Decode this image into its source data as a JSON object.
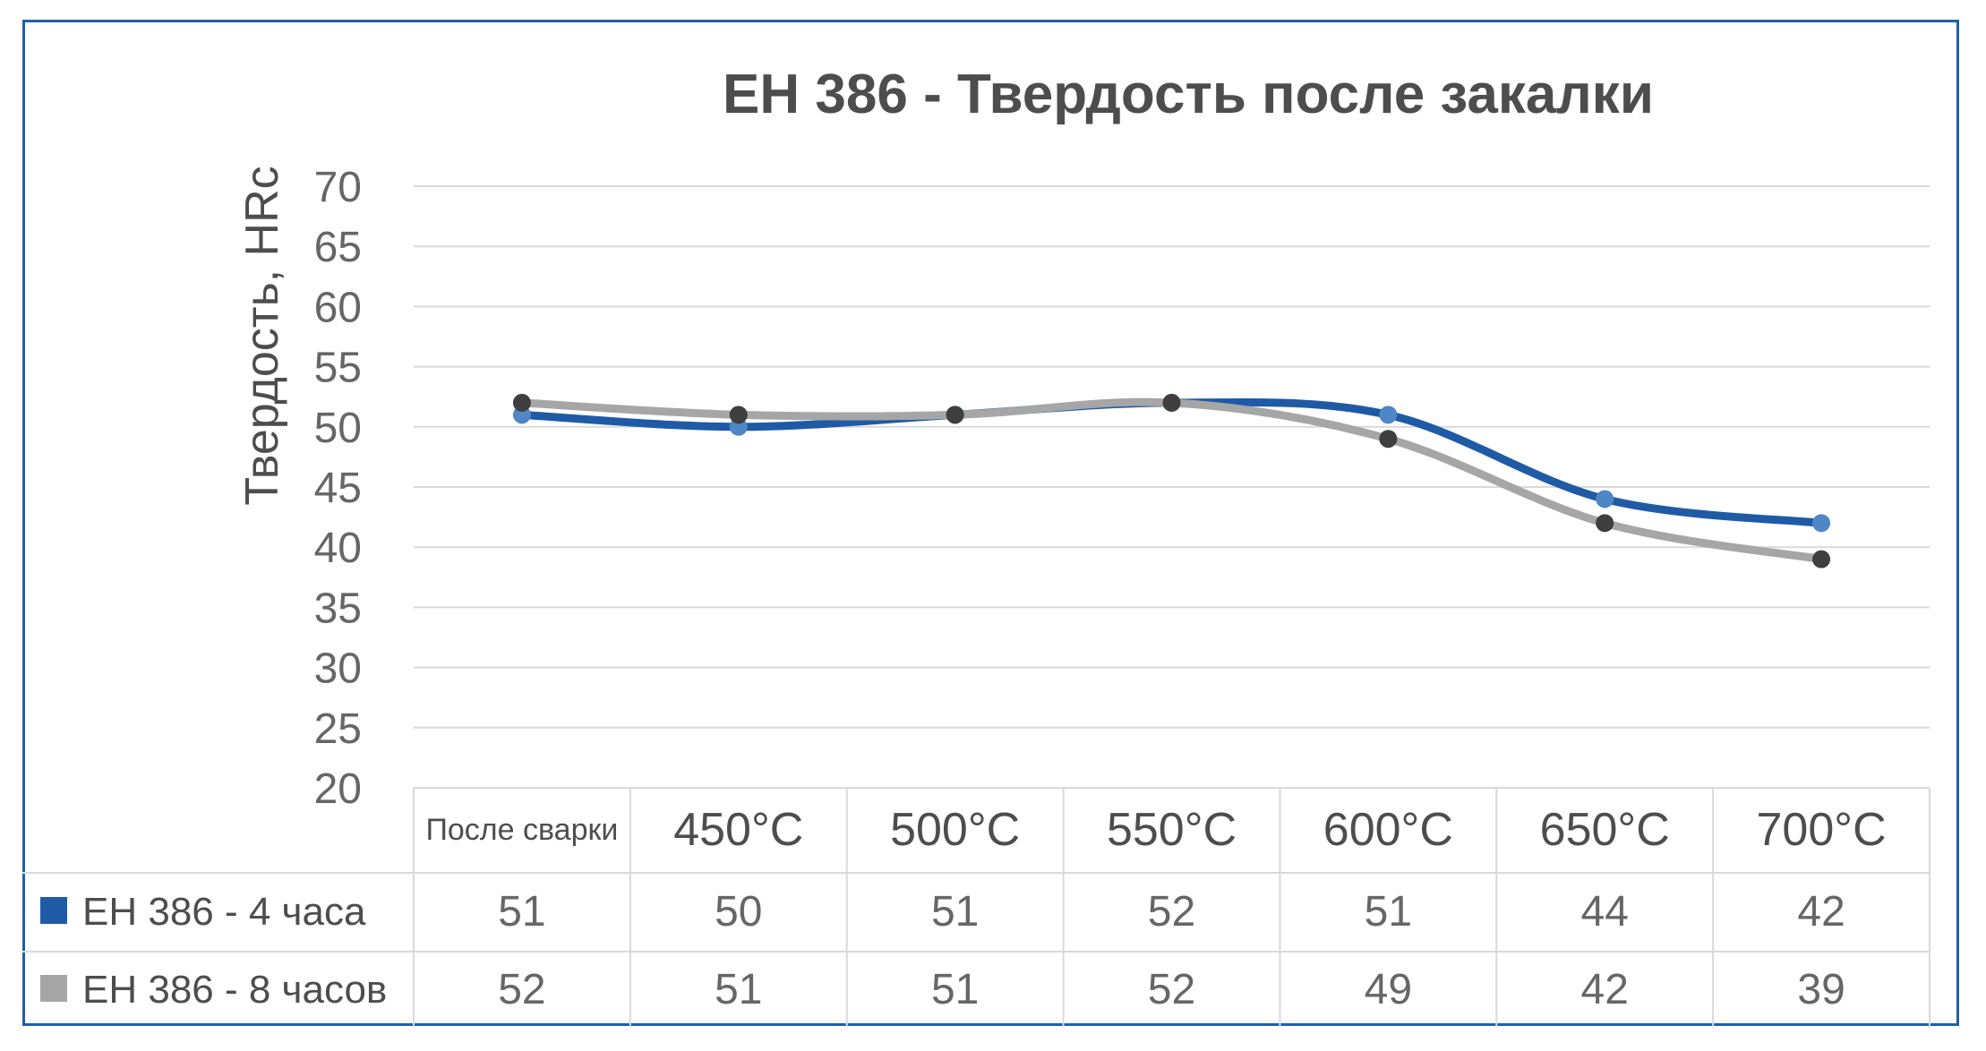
{
  "chart_data": {
    "type": "line",
    "title": "ЕН 386 - Твердость после закалки",
    "xlabel": "",
    "ylabel": "Твердость, HRc",
    "ylim": [
      20,
      70
    ],
    "yticks": [
      20,
      25,
      30,
      35,
      40,
      45,
      50,
      55,
      60,
      65,
      70
    ],
    "grid": true,
    "legend_placement": "data-table",
    "categories": [
      "После сварки",
      "450°C",
      "500°C",
      "550°C",
      "600°C",
      "650°C",
      "700°C"
    ],
    "series": [
      {
        "name": "ЕН 386 - 4 часа",
        "values": [
          51,
          50,
          51,
          52,
          51,
          44,
          42
        ],
        "color": "#1f5aa6",
        "marker_color": "#4f86c6"
      },
      {
        "name": "ЕН 386 - 8 часов",
        "values": [
          52,
          51,
          51,
          52,
          49,
          42,
          39
        ],
        "color": "#a6a6a6",
        "marker_color": "#3f3f3f"
      }
    ],
    "colors": {
      "frame": "#1f5fa8",
      "grid": "#d9d9d9",
      "table_border": "#d9d9d9"
    }
  }
}
